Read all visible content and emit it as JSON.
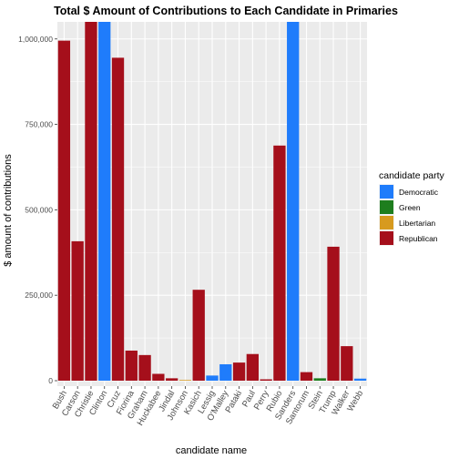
{
  "chart_data": {
    "type": "bar",
    "title": "Total $ Amount of Contributions to Each Candidate in Primaries",
    "xlabel": "candidate name",
    "ylabel": "$ amount of contributions",
    "ylim": [
      0,
      1050000
    ],
    "y_ticks": [
      0,
      250000,
      500000,
      750000,
      1000000
    ],
    "y_tick_labels": [
      "0",
      "250,000",
      "500,000",
      "750,000",
      "1,000,000"
    ],
    "grid": true,
    "legend": {
      "title": "candidate party",
      "placement": "right",
      "entries": [
        {
          "name": "Democratic",
          "color": "#1f7cfb"
        },
        {
          "name": "Green",
          "color": "#1e7e1e"
        },
        {
          "name": "Libertarian",
          "color": "#d79a1e"
        },
        {
          "name": "Republican",
          "color": "#a50f1b"
        }
      ]
    },
    "categories": [
      "Bush",
      "Carson",
      "Christie",
      "Clinton",
      "Cruz",
      "Fiorina",
      "Graham",
      "Huckabee",
      "Jindal",
      "Johnson",
      "Kasich",
      "Lessig",
      "O'Malley",
      "Pataki",
      "Paul",
      "Perry",
      "Rubio",
      "Sanders",
      "Santorum",
      "Stein",
      "Trump",
      "Walker",
      "Webb"
    ],
    "values": [
      995000,
      408000,
      1050000,
      1050000,
      945000,
      88000,
      75000,
      20000,
      7000,
      2000,
      266000,
      15000,
      48000,
      53000,
      78000,
      4000,
      688000,
      1050000,
      25000,
      7000,
      392000,
      101000,
      6000
    ],
    "parties": [
      "Republican",
      "Republican",
      "Republican",
      "Democratic",
      "Republican",
      "Republican",
      "Republican",
      "Republican",
      "Republican",
      "Libertarian",
      "Republican",
      "Democratic",
      "Democratic",
      "Republican",
      "Republican",
      "Republican",
      "Republican",
      "Democratic",
      "Republican",
      "Green",
      "Republican",
      "Republican",
      "Democratic"
    ]
  }
}
